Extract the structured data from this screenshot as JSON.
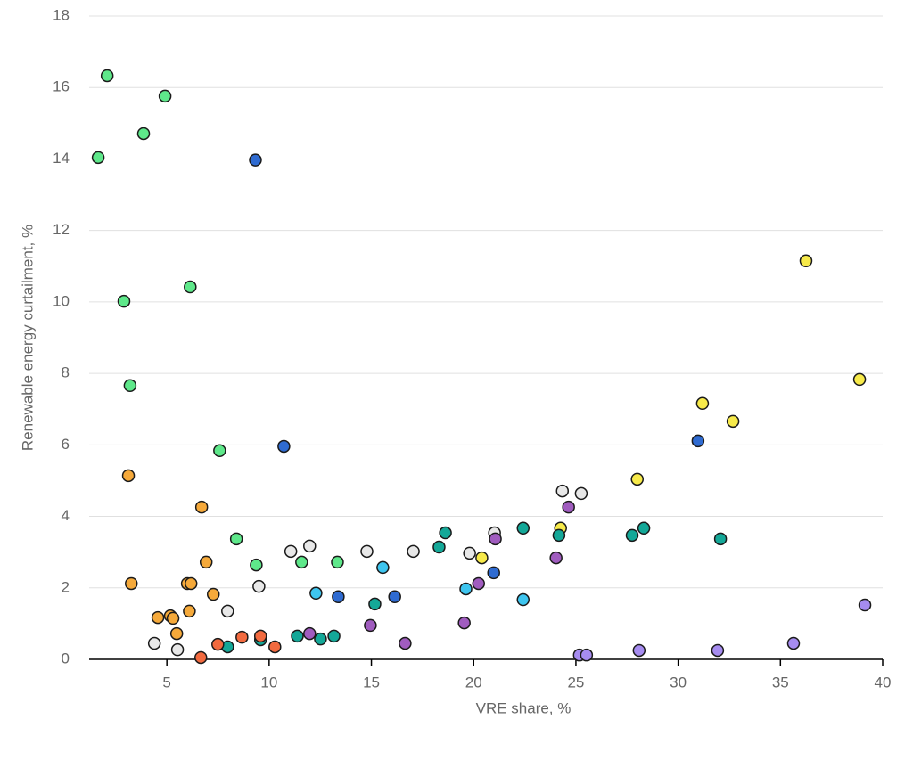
{
  "chart_data": {
    "type": "scatter",
    "xlabel": "VRE share, %",
    "ylabel": "Renewable energy curtailment, %",
    "xlim": [
      1.2,
      40
    ],
    "ylim": [
      0,
      18
    ],
    "xticks": [
      5,
      10,
      15,
      20,
      25,
      30,
      35,
      40
    ],
    "yticks": [
      0,
      2,
      4,
      6,
      8,
      10,
      12,
      14,
      16,
      18
    ],
    "grid": true,
    "series": [
      {
        "color": "#5ee88a",
        "x": [
          2.08,
          4.91,
          3.86,
          1.64,
          6.14,
          2.9,
          3.2,
          7.58,
          8.4,
          9.37,
          11.59,
          13.34
        ],
        "values": [
          16.33,
          15.76,
          14.71,
          14.04,
          10.42,
          10.02,
          7.66,
          5.84,
          3.37,
          2.64,
          2.72,
          2.72
        ]
      },
      {
        "color": "#2f6bd1",
        "x": [
          9.33,
          10.72,
          30.97,
          20.98,
          16.14,
          13.38
        ],
        "values": [
          13.97,
          5.96,
          6.11,
          2.42,
          1.75,
          1.75
        ]
      },
      {
        "color": "#f5a93a",
        "x": [
          3.12,
          6.7,
          6.92,
          3.26,
          6.0,
          6.18,
          7.27,
          6.1,
          4.56,
          5.17,
          5.3,
          5.48
        ],
        "values": [
          5.14,
          4.26,
          2.72,
          2.12,
          2.12,
          2.12,
          1.82,
          1.35,
          1.17,
          1.22,
          1.15,
          0.72
        ]
      },
      {
        "color": "#f7ea4a",
        "x": [
          36.25,
          38.87,
          31.19,
          32.68,
          28.0,
          24.25,
          20.4
        ],
        "values": [
          11.15,
          7.83,
          7.16,
          6.66,
          5.04,
          3.67,
          2.84
        ]
      },
      {
        "color": "#e8e8e8",
        "x": [
          24.34,
          25.26,
          21.02,
          19.8,
          17.05,
          14.78,
          11.98,
          11.06,
          9.5,
          7.97,
          4.39,
          5.52
        ],
        "values": [
          4.71,
          4.64,
          3.54,
          2.97,
          3.02,
          3.02,
          3.17,
          3.02,
          2.04,
          1.35,
          0.45,
          0.27
        ]
      },
      {
        "color": "#14a898",
        "x": [
          22.42,
          18.62,
          18.31,
          24.17,
          27.75,
          28.32,
          32.07,
          15.17,
          11.38,
          12.51,
          13.17,
          9.58,
          7.97
        ],
        "values": [
          3.67,
          3.54,
          3.14,
          3.47,
          3.47,
          3.67,
          3.37,
          1.55,
          0.65,
          0.57,
          0.65,
          0.55,
          0.35
        ]
      },
      {
        "color": "#3ec5ef",
        "x": [
          15.56,
          12.29,
          19.62,
          22.42
        ],
        "values": [
          2.57,
          1.85,
          1.97,
          1.67
        ]
      },
      {
        "color": "#a05cbf",
        "x": [
          24.64,
          21.06,
          24.03,
          20.24,
          19.54,
          14.95,
          11.98,
          16.65
        ],
        "values": [
          4.26,
          3.37,
          2.84,
          2.12,
          1.02,
          0.95,
          0.72,
          0.45
        ]
      },
      {
        "color": "#a68cf0",
        "x": [
          39.13,
          35.64,
          31.93,
          28.09,
          25.17,
          25.52
        ],
        "values": [
          1.52,
          0.45,
          0.25,
          0.25,
          0.12,
          0.12
        ]
      },
      {
        "color": "#f26a3f",
        "x": [
          7.49,
          8.67,
          9.58,
          10.28,
          6.66
        ],
        "values": [
          0.42,
          0.62,
          0.65,
          0.35,
          0.05
        ]
      }
    ]
  }
}
